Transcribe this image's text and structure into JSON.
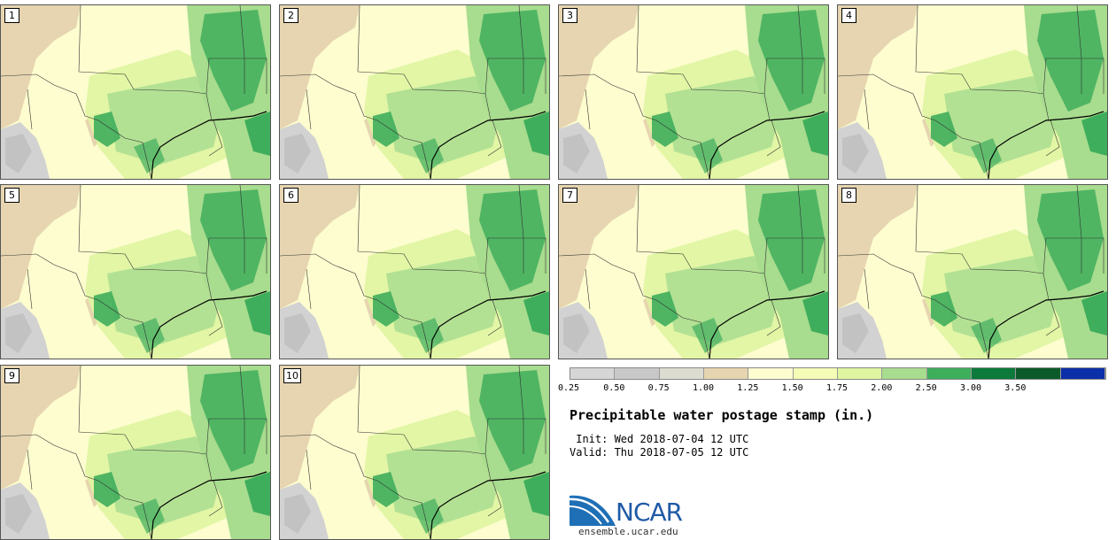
{
  "stamps": [
    {
      "label": "1"
    },
    {
      "label": "2"
    },
    {
      "label": "3"
    },
    {
      "label": "4"
    },
    {
      "label": "5"
    },
    {
      "label": "6"
    },
    {
      "label": "7"
    },
    {
      "label": "8"
    },
    {
      "label": "9"
    },
    {
      "label": "10"
    }
  ],
  "colorbar": {
    "ticks": [
      "0.25",
      "0.50",
      "0.75",
      "1.00",
      "1.25",
      "1.50",
      "1.75",
      "2.00",
      "2.50",
      "3.00",
      "3.50"
    ],
    "colors": [
      "#d6d6d6",
      "#c8c8c8",
      "#dddcd0",
      "#e6d5b0",
      "#fdfdd0",
      "#f5fcb5",
      "#dff5a0",
      "#a8dc8e",
      "#3fae5c",
      "#0b7a3a",
      "#0a5a2a",
      "#0a2fa8"
    ]
  },
  "title": "Precipitable water postage stamp (in.)",
  "init": " Init: Wed 2018-07-04 12 UTC",
  "valid": "Valid: Thu 2018-07-05 12 UTC",
  "logo": {
    "text": "NCAR",
    "site": "ensemble.ucar.edu"
  }
}
